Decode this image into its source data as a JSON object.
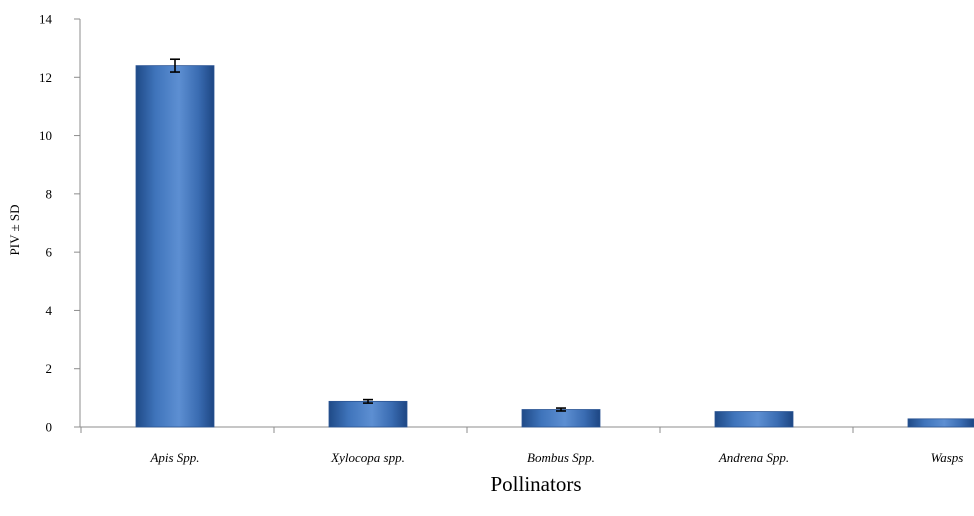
{
  "chart_data": {
    "type": "bar",
    "title": "",
    "xlabel": "Pollinators",
    "ylabel": "PIV ± SD",
    "ylim": [
      0,
      14
    ],
    "yticks": [
      0,
      2,
      4,
      6,
      8,
      10,
      12,
      14
    ],
    "grid": false,
    "legend": "none",
    "categories": [
      "Apis Spp.",
      "Xylocopa spp.",
      "Bombus Spp.",
      "Andrena Spp.",
      "Wasps"
    ],
    "values": [
      12.4,
      0.88,
      0.6,
      0.53,
      0.28
    ],
    "errors": [
      0.22,
      0.06,
      0.05,
      0,
      0
    ],
    "bar_color": "#3d6fb5"
  }
}
